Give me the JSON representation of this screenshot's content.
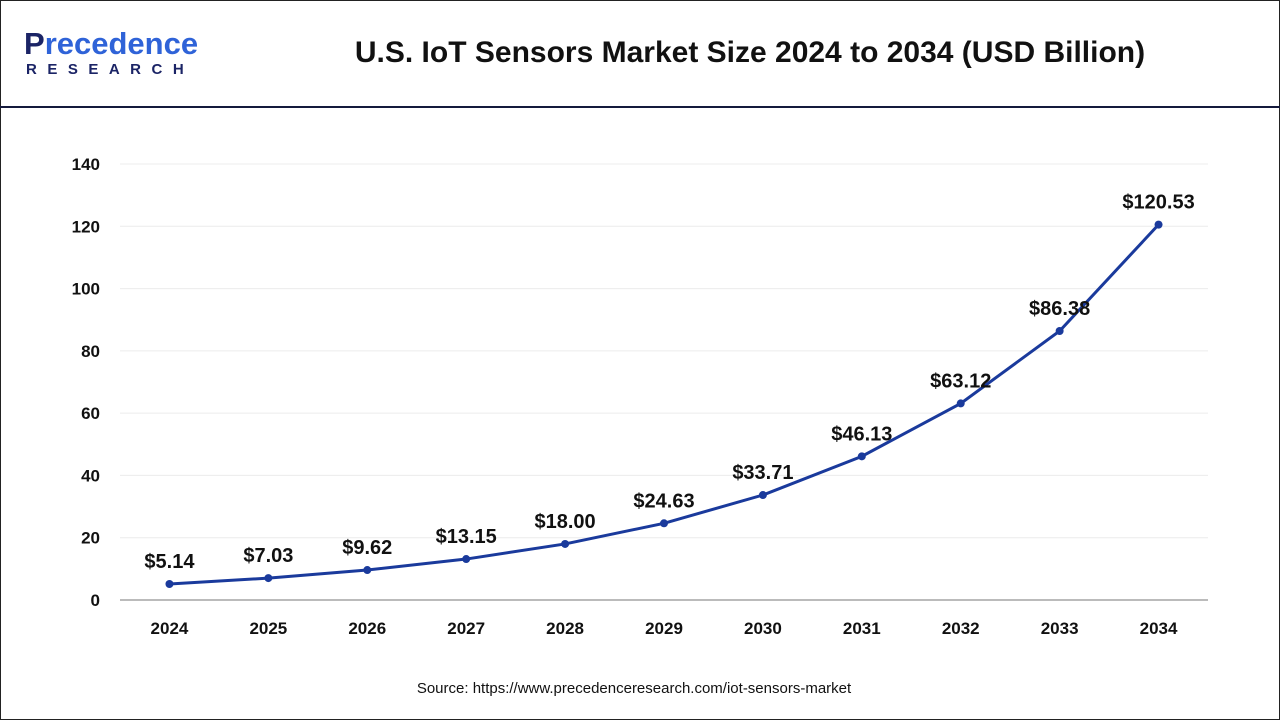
{
  "header": {
    "logo_text": "Precedence",
    "logo_subtext": "RESEARCH",
    "title": "U.S. IoT Sensors Market Size 2024 to 2034 (USD Billion)"
  },
  "source": "Source: https://www.precedenceresearch.com/iot-sensors-market",
  "chart_data": {
    "type": "line",
    "title": "U.S. IoT Sensors Market Size 2024 to 2034 (USD Billion)",
    "categories": [
      "2024",
      "2025",
      "2026",
      "2027",
      "2028",
      "2029",
      "2030",
      "2031",
      "2032",
      "2033",
      "2034"
    ],
    "values": [
      5.14,
      7.03,
      9.62,
      13.15,
      18.0,
      24.63,
      33.71,
      46.13,
      63.12,
      86.38,
      120.53
    ],
    "data_labels": [
      "$5.14",
      "$7.03",
      "$9.62",
      "$13.15",
      "$18.00",
      "$24.63",
      "$33.71",
      "$46.13",
      "$63.12",
      "$86.38",
      "$120.53"
    ],
    "ylim": [
      0,
      140
    ],
    "yticks": [
      "0",
      "20",
      "40",
      "60",
      "80",
      "100",
      "120",
      "140"
    ],
    "grid": true,
    "line_color": "#1a3a9c",
    "xlabel": "",
    "ylabel": ""
  }
}
